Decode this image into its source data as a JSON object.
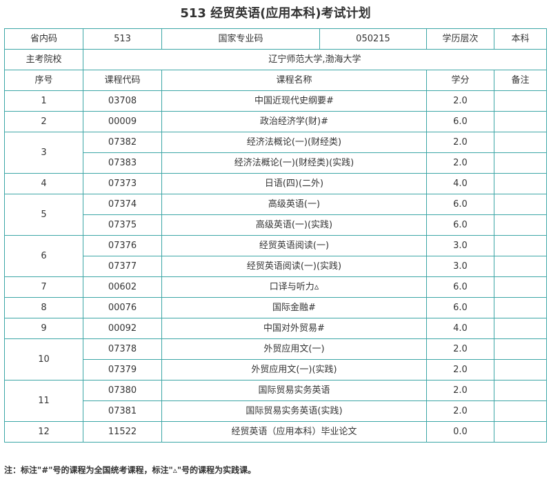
{
  "title": "513 经贸英语(应用本科)考试计划",
  "meta": {
    "province_code_label": "省内码",
    "province_code": "513",
    "national_code_label": "国家专业码",
    "national_code": "050215",
    "level_label": "学历层次",
    "level": "本科",
    "school_label": "主考院校",
    "school": "辽宁师范大学,渤海大学"
  },
  "headers": {
    "seq": "序号",
    "code": "课程代码",
    "name": "课程名称",
    "credit": "学分",
    "remark": "备注"
  },
  "rows": [
    {
      "seq": "1",
      "courses": [
        {
          "code": "03708",
          "name": "中国近现代史纲要#",
          "credit": "2.0",
          "remark": ""
        }
      ]
    },
    {
      "seq": "2",
      "courses": [
        {
          "code": "00009",
          "name": "政治经济学(财)#",
          "credit": "6.0",
          "remark": ""
        }
      ]
    },
    {
      "seq": "3",
      "courses": [
        {
          "code": "07382",
          "name": "经济法概论(一)(财经类)",
          "credit": "2.0",
          "remark": ""
        },
        {
          "code": "07383",
          "name": "经济法概论(一)(财经类)(实践)",
          "credit": "2.0",
          "remark": ""
        }
      ]
    },
    {
      "seq": "4",
      "courses": [
        {
          "code": "07373",
          "name": "日语(四)(二外)",
          "credit": "4.0",
          "remark": ""
        }
      ]
    },
    {
      "seq": "5",
      "courses": [
        {
          "code": "07374",
          "name": "高级英语(一)",
          "credit": "6.0",
          "remark": ""
        },
        {
          "code": "07375",
          "name": "高级英语(一)(实践)",
          "credit": "6.0",
          "remark": ""
        }
      ]
    },
    {
      "seq": "6",
      "courses": [
        {
          "code": "07376",
          "name": "经贸英语阅读(一)",
          "credit": "3.0",
          "remark": ""
        },
        {
          "code": "07377",
          "name": "经贸英语阅读(一)(实践)",
          "credit": "3.0",
          "remark": ""
        }
      ]
    },
    {
      "seq": "7",
      "courses": [
        {
          "code": "00602",
          "name": "口译与听力▵",
          "credit": "6.0",
          "remark": ""
        }
      ]
    },
    {
      "seq": "8",
      "courses": [
        {
          "code": "00076",
          "name": "国际金融#",
          "credit": "6.0",
          "remark": ""
        }
      ]
    },
    {
      "seq": "9",
      "courses": [
        {
          "code": "00092",
          "name": "中国对外贸易#",
          "credit": "4.0",
          "remark": ""
        }
      ]
    },
    {
      "seq": "10",
      "courses": [
        {
          "code": "07378",
          "name": "外贸应用文(一)",
          "credit": "2.0",
          "remark": ""
        },
        {
          "code": "07379",
          "name": "外贸应用文(一)(实践)",
          "credit": "2.0",
          "remark": ""
        }
      ]
    },
    {
      "seq": "11",
      "courses": [
        {
          "code": "07380",
          "name": "国际贸易实务英语",
          "credit": "2.0",
          "remark": ""
        },
        {
          "code": "07381",
          "name": "国际贸易实务英语(实践)",
          "credit": "2.0",
          "remark": ""
        }
      ]
    },
    {
      "seq": "12",
      "courses": [
        {
          "code": "11522",
          "name": "经贸英语（应用本科）毕业论文",
          "credit": "0.0",
          "remark": ""
        }
      ]
    }
  ],
  "note": "注：标注\"#\"号的课程为全国统考课程，标注\"▵\"号的课程为实践课。",
  "colors": {
    "border": "#3aa5a5",
    "text": "#333333"
  }
}
